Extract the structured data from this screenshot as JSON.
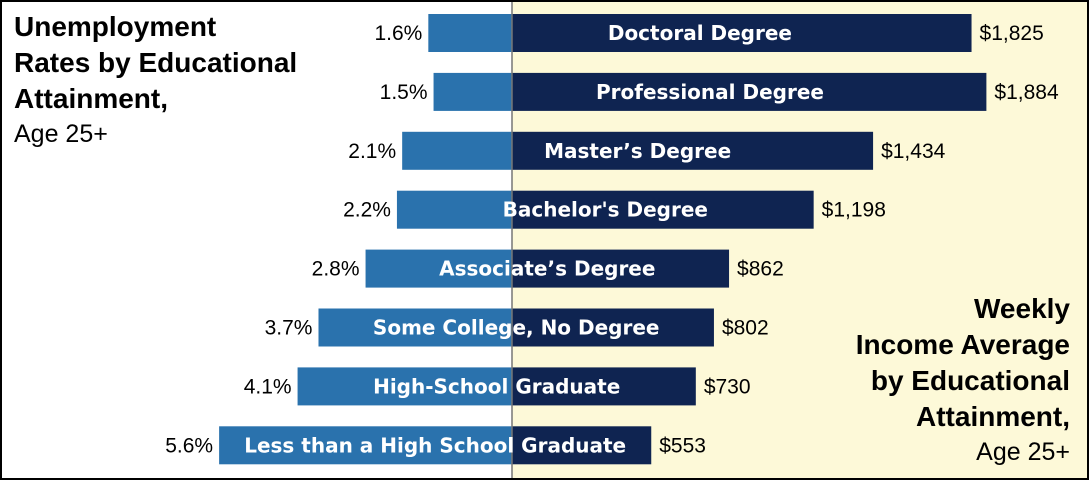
{
  "titles": {
    "left": [
      "Unemployment",
      "Rates by Educational",
      "Attainment,"
    ],
    "left_sub": "Age 25+",
    "right": [
      "Weekly",
      "Income Average",
      "by Educational",
      "Attainment,"
    ],
    "right_sub": "Age 25+"
  },
  "colors": {
    "unemployment": "#2a72ad",
    "income": "#0f2451",
    "right_panel": "#fdf9d8",
    "divider": "#777777"
  },
  "chart_data": {
    "type": "bar",
    "orientation": "horizontal",
    "layout": "diverging",
    "categories": [
      "Doctoral Degree",
      "Professional Degree",
      "Master’s Degree",
      "Bachelor's Degree",
      "Associate’s Degree",
      "Some College, No Degree",
      "High-School Graduate",
      "Less than a High School Graduate"
    ],
    "series": [
      {
        "name": "Unemployment Rates by Educational Attainment, Age 25+",
        "values": [
          1.6,
          1.5,
          2.1,
          2.2,
          2.8,
          3.7,
          4.1,
          5.6
        ],
        "labels": [
          "1.6%",
          "1.5%",
          "2.1%",
          "2.2%",
          "2.8%",
          "3.7%",
          "4.1%",
          "5.6%"
        ],
        "direction": "left"
      },
      {
        "name": "Weekly Income Average by Educational Attainment, Age 25+",
        "values": [
          1825,
          1884,
          1434,
          1198,
          862,
          802,
          730,
          553
        ],
        "labels": [
          "$1,825",
          "$1,884",
          "$1,434",
          "$1,198",
          "$862",
          "$802",
          "$730",
          "$553"
        ],
        "direction": "right"
      }
    ],
    "grid": false,
    "legend": "none"
  }
}
